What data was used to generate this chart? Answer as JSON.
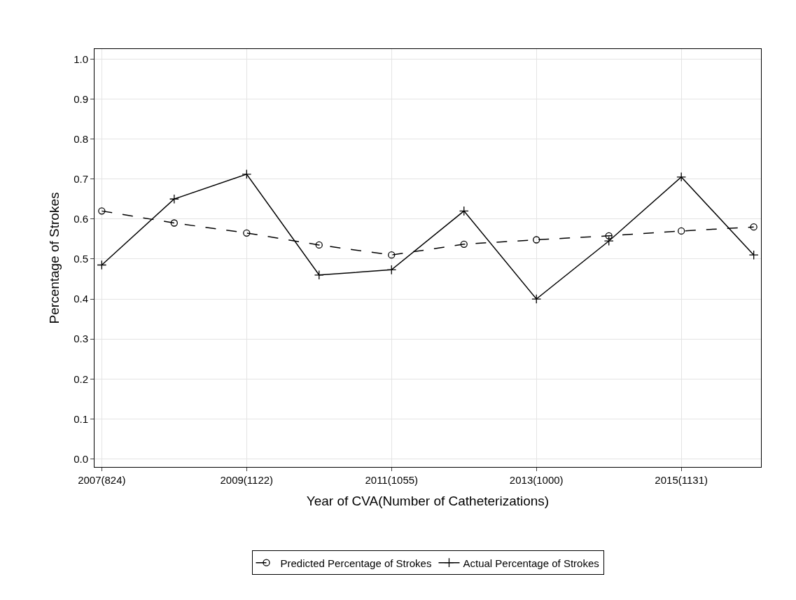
{
  "chart_data": {
    "type": "line",
    "xlabel": "Year of CVA(Number of Catheterizations)",
    "ylabel": "Percentage of Strokes",
    "categories": [
      "2007(824)",
      null,
      "2009(1122)",
      null,
      "2011(1055)",
      null,
      "2013(1000)",
      null,
      "2015(1131)",
      null
    ],
    "series": [
      {
        "name": "Predicted Percentage of Strokes",
        "color": "#000000",
        "marker": "circle",
        "line_style": "dashed",
        "values": [
          0.62,
          0.59,
          0.565,
          0.535,
          0.51,
          0.537,
          0.548,
          0.558,
          0.57,
          0.58
        ]
      },
      {
        "name": "Actual Percentage of Strokes",
        "color": "#000000",
        "marker": "cross",
        "line_style": "solid",
        "values": [
          0.485,
          0.65,
          0.712,
          0.46,
          0.473,
          0.62,
          0.4,
          0.545,
          0.705,
          0.51
        ]
      }
    ],
    "ylim": [
      -0.02,
      1.025
    ],
    "yticks": [
      {
        "value": 0,
        "label": "0.0"
      },
      0.1,
      0.2,
      0.3,
      0.4,
      0.5,
      0.6,
      0.7,
      0.8,
      0.9,
      {
        "value": 1,
        "label": "1.0"
      }
    ],
    "grid": true,
    "legend": "bottom"
  }
}
